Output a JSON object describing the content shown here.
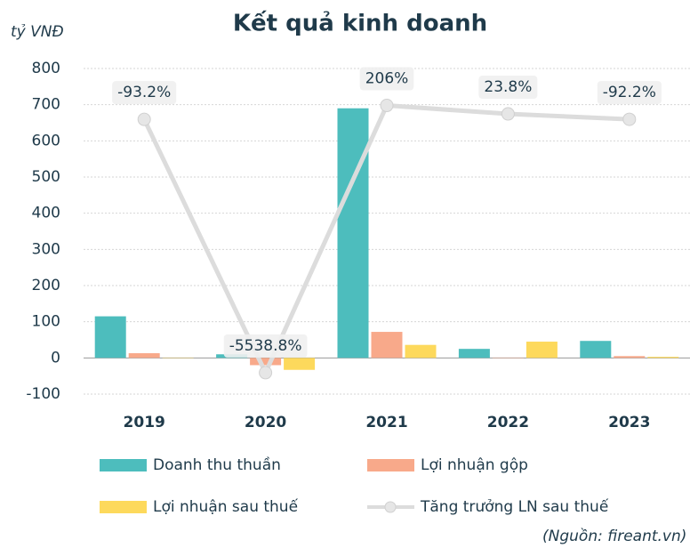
{
  "chart_data": {
    "type": "bar",
    "title": "Kết quả kinh doanh",
    "y_axis_label": "tỷ VNĐ",
    "source": "(Nguồn: fireant.vn)",
    "categories": [
      "2019",
      "2020",
      "2021",
      "2022",
      "2023"
    ],
    "ylim": [
      -100,
      800
    ],
    "yticks": [
      -100,
      0,
      100,
      200,
      300,
      400,
      500,
      600,
      700,
      800
    ],
    "y2lim": [
      -6000,
      1000
    ],
    "grid": true,
    "legend": "bottom",
    "series": [
      {
        "name": "Doanh thu thuần",
        "type": "bar",
        "color": "#4dbdbd",
        "values": [
          115,
          10,
          690,
          25,
          47
        ]
      },
      {
        "name": "Lợi nhuận gộp",
        "type": "bar",
        "color": "#f8a98a",
        "values": [
          13,
          -20,
          72,
          1,
          5
        ]
      },
      {
        "name": "Lợi nhuận sau thuế",
        "type": "bar",
        "color": "#fdd95c",
        "values": [
          1,
          -33,
          36,
          45,
          3
        ]
      },
      {
        "name": "Tăng trưởng LN sau thuế",
        "type": "line",
        "axis": "y2",
        "color": "#dcdcdc",
        "values": [
          -93.2,
          -5538.8,
          206,
          23.8,
          -92.2
        ],
        "value_labels": [
          "-93.2%",
          "-5538.8%",
          "206%",
          "23.8%",
          "-92.2%"
        ]
      }
    ]
  }
}
